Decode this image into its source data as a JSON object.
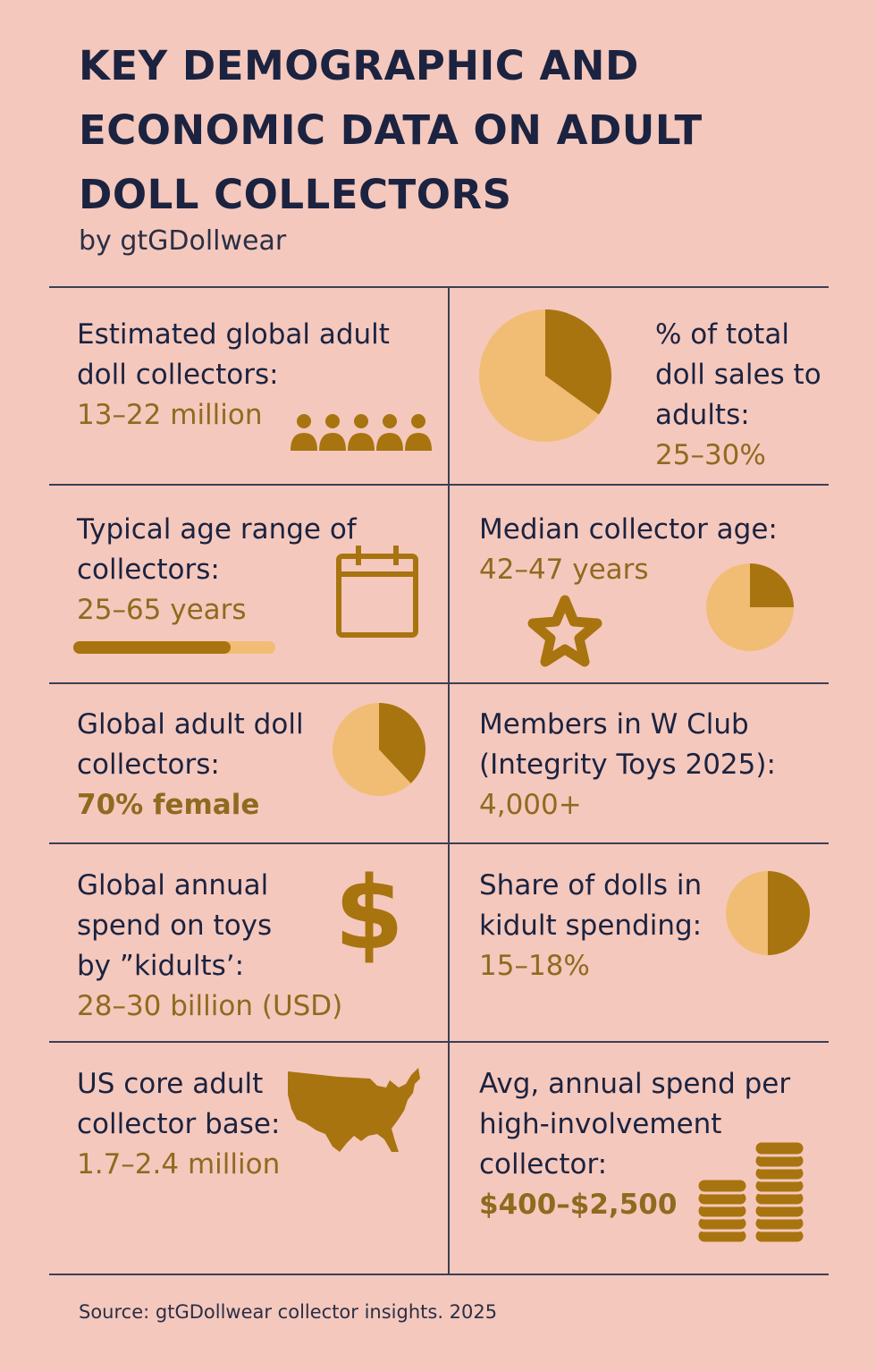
{
  "title": [
    "KEY DEMOGRAPHIC AND",
    "ECONOMIC DATA ON ADULT",
    "DOLL COLLECTORS"
  ],
  "byline": "by gtGDollwear",
  "colors": {
    "background": "#f5c8bd",
    "navy": "#1b2340",
    "gold": "#8f6a1f",
    "light_gold": "#f1bd74",
    "dark_gold": "#a8740f"
  },
  "cells": {
    "global_collectors": {
      "lines": [
        "Estimated global adult",
        "doll collectors:"
      ],
      "value": "13–22 million",
      "icon": "people-icon"
    },
    "adult_share": {
      "lines": [
        "% of total",
        "doll sales to",
        "adults:"
      ],
      "value": "25–30%",
      "icon": "pie-chart-icon",
      "share": 0.35
    },
    "age_range": {
      "lines": [
        "Typical age range of",
        "collectors:"
      ],
      "value": "25–65 years",
      "icon": "calendar-icon",
      "progress": 0.78
    },
    "median_age": {
      "lines": [
        "Median collector age:"
      ],
      "value": "42–47 years",
      "icon": "star-icon",
      "pie_icon": "pie-chart-icon",
      "share": 0.25
    },
    "female": {
      "lines": [
        "Global adult doll",
        "collectors:"
      ],
      "value": "70% female",
      "icon": "pie-chart-icon",
      "share": 0.38
    },
    "w_club": {
      "lines": [
        "Members in W Club",
        "(Integrity Toys  2025):"
      ],
      "value": "4,000+"
    },
    "kidult_spend": {
      "lines": [
        "Global annual",
        "spend on toys",
        "by ”kidults’:"
      ],
      "value": "28–30 billion (USD)",
      "icon": "dollar-icon"
    },
    "doll_share": {
      "lines": [
        "Share of dolls in",
        "kidult spending:"
      ],
      "value": "15–18%",
      "icon": "pie-chart-icon",
      "share": 0.5
    },
    "us_base": {
      "lines": [
        "US core adult",
        "collector base:"
      ],
      "value": "1.7–2.4 million",
      "icon": "usa-map-icon"
    },
    "avg_spend": {
      "lines": [
        "Avg, annual spend per",
        "high-involvement",
        "collector:"
      ],
      "value": "$400–$2,500",
      "icon": "coins-icon"
    }
  },
  "source": "Source: gtGDollwear collector insights. 2025"
}
